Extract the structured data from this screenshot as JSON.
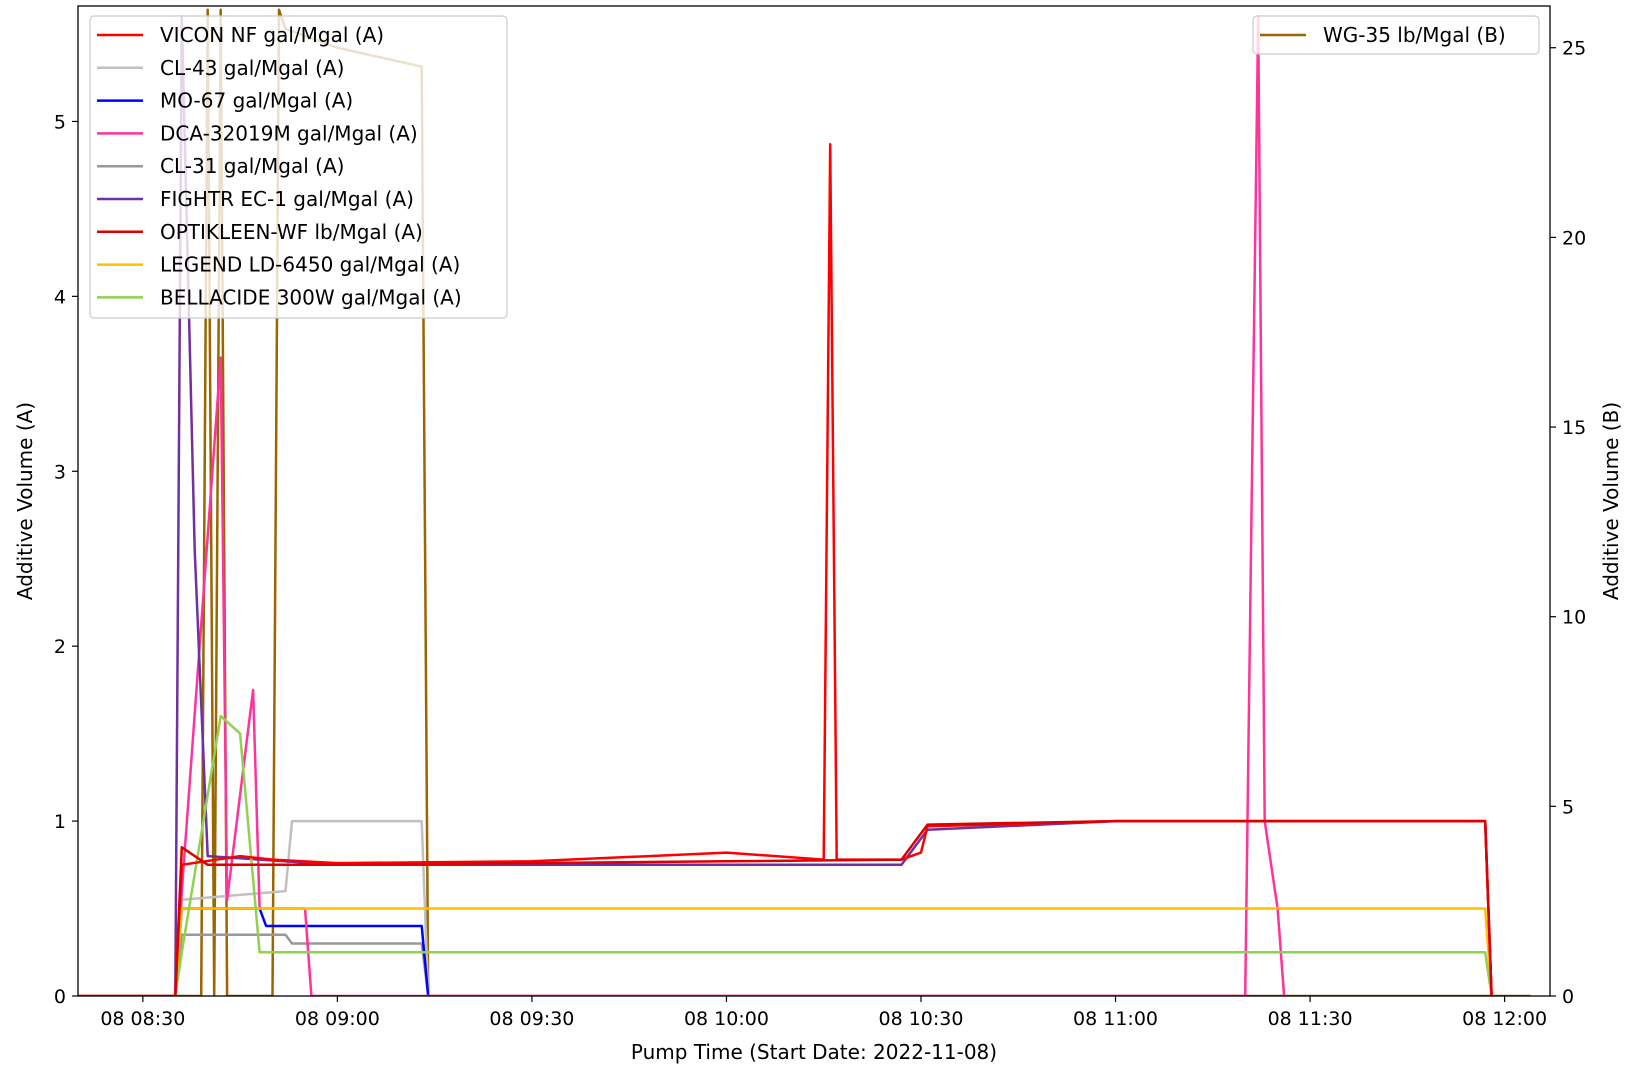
{
  "chart_data": {
    "type": "line",
    "xlabel": "Pump Time (Start Date: 2022-11-08)",
    "ylabel_left": "Additive Volume (A)",
    "ylabel_right": "Additive Volume (B)",
    "x_axis": {
      "type": "time",
      "range": [
        "2022-11-08 08:20",
        "2022-11-08 12:07"
      ],
      "ticks": [
        "2022-11-08 08:30",
        "2022-11-08 09:00",
        "2022-11-08 09:30",
        "2022-11-08 10:00",
        "2022-11-08 10:30",
        "2022-11-08 11:00",
        "2022-11-08 11:30",
        "2022-11-08 12:00"
      ],
      "tick_labels": [
        "08 08:30",
        "08 09:00",
        "08 09:30",
        "08 10:00",
        "08 10:30",
        "08 11:00",
        "08 11:30",
        "08 12:00"
      ]
    },
    "y_left": {
      "range": [
        0,
        5.66
      ],
      "ticks": [
        0,
        1,
        2,
        3,
        4,
        5
      ],
      "tick_labels": [
        "0",
        "1",
        "2",
        "3",
        "4",
        "5"
      ]
    },
    "y_right": {
      "range": [
        0,
        26.1
      ],
      "ticks": [
        0,
        5,
        10,
        15,
        20,
        25
      ],
      "tick_labels": [
        "0",
        "5",
        "10",
        "15",
        "20",
        "25"
      ]
    },
    "legend_left_placement": "upper-left",
    "legend_right_placement": "upper-right",
    "grid": false,
    "series": [
      {
        "name": "VICON NF gal/Mgal (A)",
        "axis": "A",
        "color": "#ff0000",
        "points": [
          [
            "08:20",
            0
          ],
          [
            "08:35",
            0
          ],
          [
            "08:36",
            0.75
          ],
          [
            "08:45",
            0.8
          ],
          [
            "08:50",
            0.78
          ],
          [
            "09:00",
            0.76
          ],
          [
            "09:30",
            0.77
          ],
          [
            "10:00",
            0.82
          ],
          [
            "10:15",
            0.78
          ],
          [
            "10:16",
            4.87
          ],
          [
            "10:17",
            0.78
          ],
          [
            "10:27",
            0.78
          ],
          [
            "10:30",
            0.82
          ],
          [
            "10:31",
            0.97
          ],
          [
            "11:00",
            1.0
          ],
          [
            "11:30",
            1.0
          ],
          [
            "11:57",
            1.0
          ],
          [
            "11:58",
            0
          ]
        ]
      },
      {
        "name": "CL-43 gal/Mgal (A)",
        "axis": "A",
        "color": "#c0c0c0",
        "points": [
          [
            "08:35",
            0
          ],
          [
            "08:36",
            0.55
          ],
          [
            "08:52",
            0.6
          ],
          [
            "08:53",
            1.0
          ],
          [
            "09:10",
            1.0
          ],
          [
            "09:13",
            1.0
          ],
          [
            "09:14",
            0
          ]
        ]
      },
      {
        "name": "MO-67 gal/Mgal (A)",
        "axis": "A",
        "color": "#0000ff",
        "points": [
          [
            "08:35",
            0
          ],
          [
            "08:36",
            0.5
          ],
          [
            "08:48",
            0.5
          ],
          [
            "08:49",
            0.4
          ],
          [
            "09:13",
            0.4
          ],
          [
            "09:14",
            0
          ]
        ]
      },
      {
        "name": "DCA-32019M gal/Mgal (A)",
        "axis": "A",
        "color": "#ff3399",
        "points": [
          [
            "08:35",
            0
          ],
          [
            "08:36",
            0.6
          ],
          [
            "08:42",
            3.65
          ],
          [
            "08:43",
            0.55
          ],
          [
            "08:47",
            1.75
          ],
          [
            "08:48",
            0.5
          ],
          [
            "08:55",
            0.5
          ],
          [
            "08:56",
            0
          ],
          [
            "11:20",
            0
          ],
          [
            "11:21",
            2.85
          ],
          [
            "11:22",
            5.6
          ],
          [
            "11:23",
            1.0
          ],
          [
            "11:25",
            0.5
          ],
          [
            "11:26",
            0
          ]
        ]
      },
      {
        "name": "CL-31 gal/Mgal (A)",
        "axis": "A",
        "color": "#999999",
        "points": [
          [
            "08:35",
            0
          ],
          [
            "08:36",
            0.35
          ],
          [
            "08:52",
            0.35
          ],
          [
            "08:53",
            0.3
          ],
          [
            "09:13",
            0.3
          ],
          [
            "09:14",
            0
          ]
        ]
      },
      {
        "name": "FIGHTR EC-1 gal/Mgal (A)",
        "axis": "A",
        "color": "#7030a0",
        "points": [
          [
            "08:35",
            0
          ],
          [
            "08:36",
            5.6
          ],
          [
            "08:38",
            2.55
          ],
          [
            "08:40",
            0.8
          ],
          [
            "09:00",
            0.75
          ],
          [
            "10:27",
            0.75
          ],
          [
            "10:31",
            0.95
          ],
          [
            "11:00",
            1.0
          ],
          [
            "11:57",
            1.0
          ],
          [
            "11:58",
            0
          ]
        ]
      },
      {
        "name": "OPTIKLEEN-WF lb/Mgal (A)",
        "axis": "A",
        "color": "#dd0000",
        "points": [
          [
            "08:35",
            0
          ],
          [
            "08:36",
            0.85
          ],
          [
            "08:40",
            0.75
          ],
          [
            "09:00",
            0.75
          ],
          [
            "09:30",
            0.76
          ],
          [
            "10:00",
            0.77
          ],
          [
            "10:27",
            0.78
          ],
          [
            "10:31",
            0.98
          ],
          [
            "11:00",
            1.0
          ],
          [
            "11:30",
            1.0
          ],
          [
            "11:57",
            1.0
          ],
          [
            "11:58",
            0
          ]
        ]
      },
      {
        "name": "LEGEND LD-6450 gal/Mgal (A)",
        "axis": "A",
        "color": "#ffc000",
        "points": [
          [
            "08:35",
            0
          ],
          [
            "08:36",
            0.5
          ],
          [
            "09:00",
            0.5
          ],
          [
            "10:00",
            0.5
          ],
          [
            "11:00",
            0.5
          ],
          [
            "11:57",
            0.5
          ],
          [
            "11:58",
            0
          ]
        ]
      },
      {
        "name": "BELLACIDE 300W gal/Mgal (A)",
        "axis": "A",
        "color": "#92d050",
        "points": [
          [
            "08:35",
            0
          ],
          [
            "08:36",
            0.25
          ],
          [
            "08:42",
            1.6
          ],
          [
            "08:45",
            1.5
          ],
          [
            "08:48",
            0.25
          ],
          [
            "09:00",
            0.25
          ],
          [
            "10:00",
            0.25
          ],
          [
            "11:00",
            0.25
          ],
          [
            "11:57",
            0.25
          ],
          [
            "11:58",
            0
          ]
        ]
      },
      {
        "name": "WG-35 lb/Mgal (B)",
        "axis": "B",
        "color": "#996600",
        "points": [
          [
            "08:20",
            0
          ],
          [
            "08:39",
            0
          ],
          [
            "08:40",
            26
          ],
          [
            "08:41",
            0
          ],
          [
            "08:42",
            26
          ],
          [
            "08:43",
            0
          ],
          [
            "08:50",
            0
          ],
          [
            "08:51",
            26
          ],
          [
            "08:52",
            25.5
          ],
          [
            "09:00",
            25
          ],
          [
            "09:13",
            24.5
          ],
          [
            "09:14",
            0
          ],
          [
            "12:04",
            0
          ]
        ]
      }
    ]
  }
}
